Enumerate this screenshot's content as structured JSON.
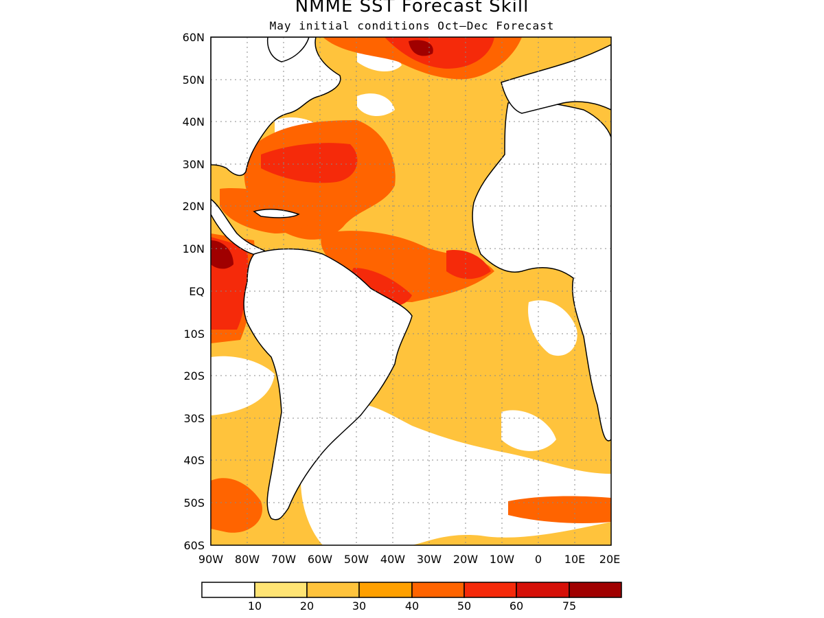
{
  "title": "NMME SST Forecast Skill",
  "subtitle": "May initial conditions  Oct–Dec Forecast",
  "lat_labels": [
    "60N",
    "50N",
    "40N",
    "30N",
    "20N",
    "10N",
    "EQ",
    "10S",
    "20S",
    "30S",
    "40S",
    "50S",
    "60S"
  ],
  "lon_labels": [
    "90W",
    "80W",
    "70W",
    "60W",
    "50W",
    "40W",
    "30W",
    "20W",
    "10W",
    "0",
    "10E",
    "20E"
  ],
  "map": {
    "lat_range": [
      -60,
      60
    ],
    "lon_range": [
      -90,
      20
    ],
    "grid": true,
    "projection": "latitude-longitude"
  },
  "colorbar": {
    "levels": [
      "10",
      "20",
      "30",
      "40",
      "50",
      "60",
      "75"
    ],
    "colors": [
      "#ffffff",
      "#ffe474",
      "#ffc33c",
      "#ffa000",
      "#ff6400",
      "#f52a0a",
      "#d51008",
      "#a00000"
    ]
  }
}
